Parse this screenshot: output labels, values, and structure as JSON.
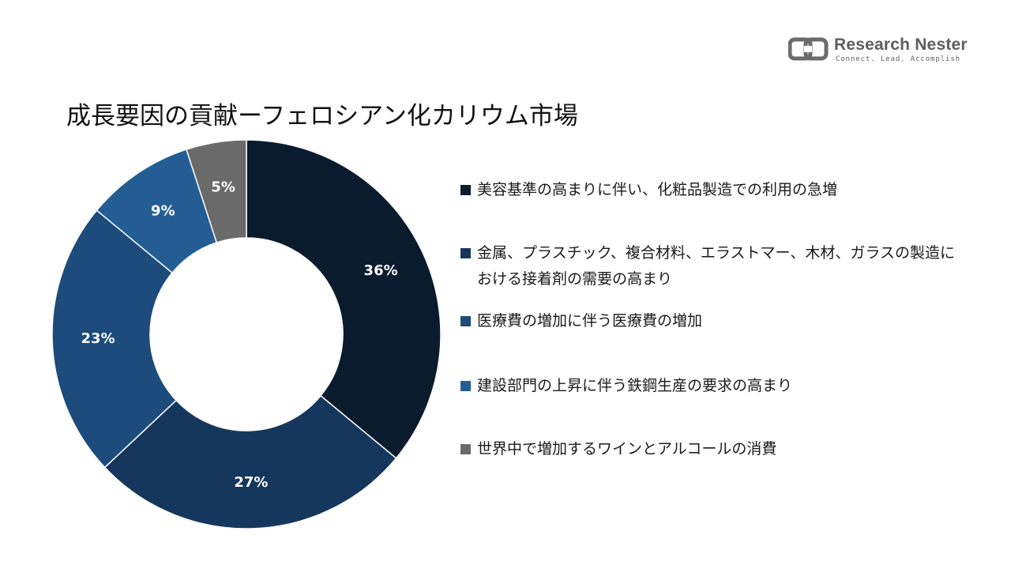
{
  "brand": {
    "name": "Research Nester",
    "tagline": "Connect. Lead. Accomplish",
    "logo_icon": "research-nester-logo-icon"
  },
  "chart_data": {
    "type": "pie",
    "variant": "donut",
    "title": "成長要因の貢献ーフェロシアン化カリウム市場",
    "legend_position": "right",
    "slices": [
      {
        "label": "美容基準の高まりに伴い、化粧品製造での利用の急増",
        "value": 36,
        "display": "36%",
        "color": "#0b1b2e"
      },
      {
        "label": "金属、プラスチック、複合材料、エラストマー、木材、ガラスの製造における接着剤の需要の高まり",
        "value": 27,
        "display": "27%",
        "color": "#16375d"
      },
      {
        "label": "医療費の増加に伴う医療費の増加",
        "value": 23,
        "display": "23%",
        "color": "#1c4b7c"
      },
      {
        "label": "建設部門の上昇に伴う鉄鋼生産の要求の高まり",
        "value": 9,
        "display": "9%",
        "color": "#235d94"
      },
      {
        "label": "世界中で増加するワインとアルコールの消費",
        "value": 5,
        "display": "5%",
        "color": "#6a6a6a"
      }
    ]
  }
}
